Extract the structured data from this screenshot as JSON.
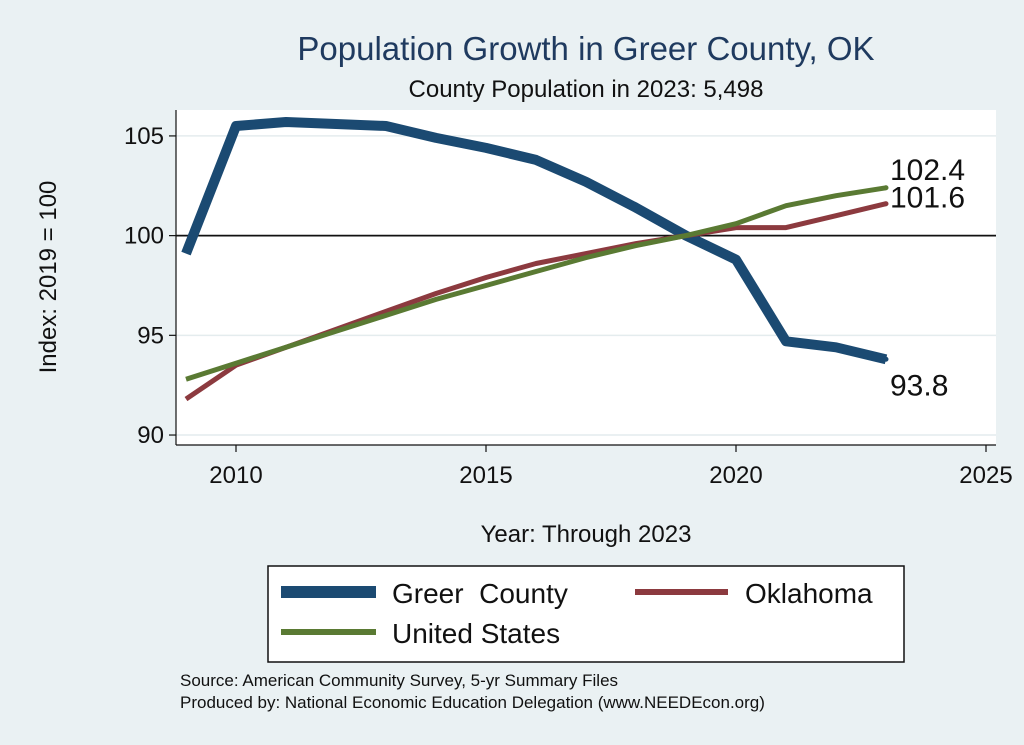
{
  "chart_data": {
    "type": "line",
    "title": "Population Growth in Greer County, OK",
    "subtitle": "County Population in 2023: 5,498",
    "xlabel": "Year: Through 2023",
    "ylabel": "Index: 2019 = 100",
    "xlim": [
      2008.8,
      2025.2
    ],
    "ylim": [
      89.5,
      106.3
    ],
    "xticks": [
      2010,
      2015,
      2020,
      2025
    ],
    "yticks": [
      90,
      95,
      100,
      105
    ],
    "reference_line": 100,
    "grid": true,
    "legend_position": "bottom",
    "x": [
      2009,
      2010,
      2011,
      2012,
      2013,
      2014,
      2015,
      2016,
      2017,
      2018,
      2019,
      2020,
      2021,
      2022,
      2023
    ],
    "series": [
      {
        "name": "Greer  County",
        "color": "#1b4a72",
        "values": [
          99.1,
          105.5,
          105.7,
          105.6,
          105.5,
          104.9,
          104.4,
          103.8,
          102.7,
          101.4,
          100.0,
          98.8,
          94.7,
          94.4,
          93.8
        ],
        "end_label": "93.8"
      },
      {
        "name": "Oklahoma",
        "color": "#8c3a3f",
        "values": [
          91.8,
          93.5,
          94.4,
          95.3,
          96.2,
          97.1,
          97.9,
          98.6,
          99.1,
          99.6,
          100.0,
          100.4,
          100.4,
          101.0,
          101.6
        ],
        "end_label": "101.6"
      },
      {
        "name": "United States",
        "color": "#5a7a33",
        "values": [
          92.8,
          93.6,
          94.4,
          95.2,
          96.0,
          96.8,
          97.5,
          98.2,
          98.9,
          99.5,
          100.0,
          100.6,
          101.5,
          102.0,
          102.4
        ],
        "end_label": "102.4"
      }
    ]
  },
  "source": {
    "line1": "Source: American Community Survey, 5-yr Summary Files",
    "line2": "Produced by: National Economic Education Delegation (www.NEEDEcon.org)"
  }
}
